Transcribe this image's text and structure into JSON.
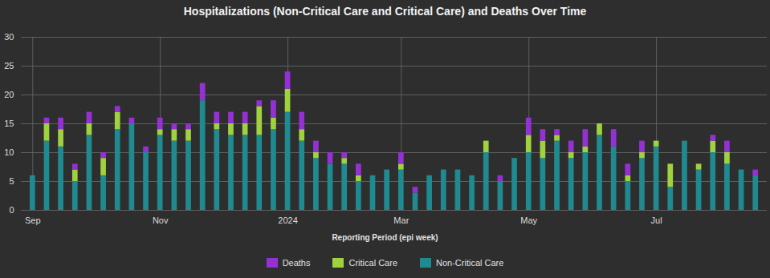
{
  "chart_data": {
    "type": "bar",
    "stacked": true,
    "title": "Hospitalizations (Non-Critical Care and Critical Care) and Deaths Over Time",
    "x_label": "Reporting Period (epi week)",
    "categories": [
      "Sep",
      null,
      null,
      null,
      null,
      null,
      null,
      null,
      null,
      "Nov",
      null,
      null,
      null,
      null,
      null,
      null,
      null,
      null,
      "2024",
      null,
      null,
      null,
      null,
      null,
      null,
      null,
      "Mar",
      null,
      null,
      null,
      null,
      null,
      null,
      null,
      null,
      "May",
      null,
      null,
      null,
      null,
      null,
      null,
      null,
      null,
      "Jul",
      null,
      null,
      null,
      null,
      null,
      null,
      null
    ],
    "series": [
      {
        "name": "Deaths",
        "color": "#9531d4",
        "values": [
          0,
          1,
          2,
          1,
          2,
          1,
          1,
          1,
          1,
          2,
          1,
          1,
          3,
          2,
          2,
          2,
          1,
          3,
          3,
          3,
          2,
          2,
          1,
          2,
          0,
          0,
          2,
          1,
          0,
          0,
          0,
          0,
          0,
          1,
          0,
          3,
          2,
          1,
          2,
          3,
          0,
          3,
          2,
          2,
          0,
          0,
          0,
          0,
          1,
          2,
          0,
          1
        ]
      },
      {
        "name": "Critical Care",
        "color": "#9fd23e",
        "values": [
          0,
          3,
          3,
          2,
          2,
          3,
          3,
          0,
          0,
          1,
          2,
          2,
          0,
          1,
          2,
          2,
          5,
          2,
          4,
          2,
          1,
          0,
          1,
          1,
          0,
          0,
          1,
          0,
          0,
          0,
          0,
          0,
          2,
          0,
          0,
          3,
          3,
          1,
          1,
          1,
          2,
          0,
          1,
          1,
          1,
          4,
          0,
          1,
          2,
          2,
          0,
          0
        ]
      },
      {
        "name": "Non-Critical Care",
        "color": "#1f8a8f",
        "values": [
          6,
          12,
          11,
          5,
          13,
          6,
          14,
          15,
          10,
          13,
          12,
          12,
          19,
          14,
          13,
          13,
          13,
          14,
          17,
          12,
          9,
          8,
          8,
          5,
          6,
          7,
          7,
          3,
          6,
          7,
          7,
          6,
          10,
          5,
          9,
          10,
          9,
          12,
          9,
          10,
          13,
          11,
          5,
          9,
          11,
          4,
          12,
          7,
          10,
          8,
          7,
          6
        ]
      }
    ],
    "ylim": [
      0,
      30
    ],
    "yticks": [
      0,
      5,
      10,
      15,
      20,
      25,
      30
    ],
    "grid": true,
    "legend": "bottom"
  }
}
